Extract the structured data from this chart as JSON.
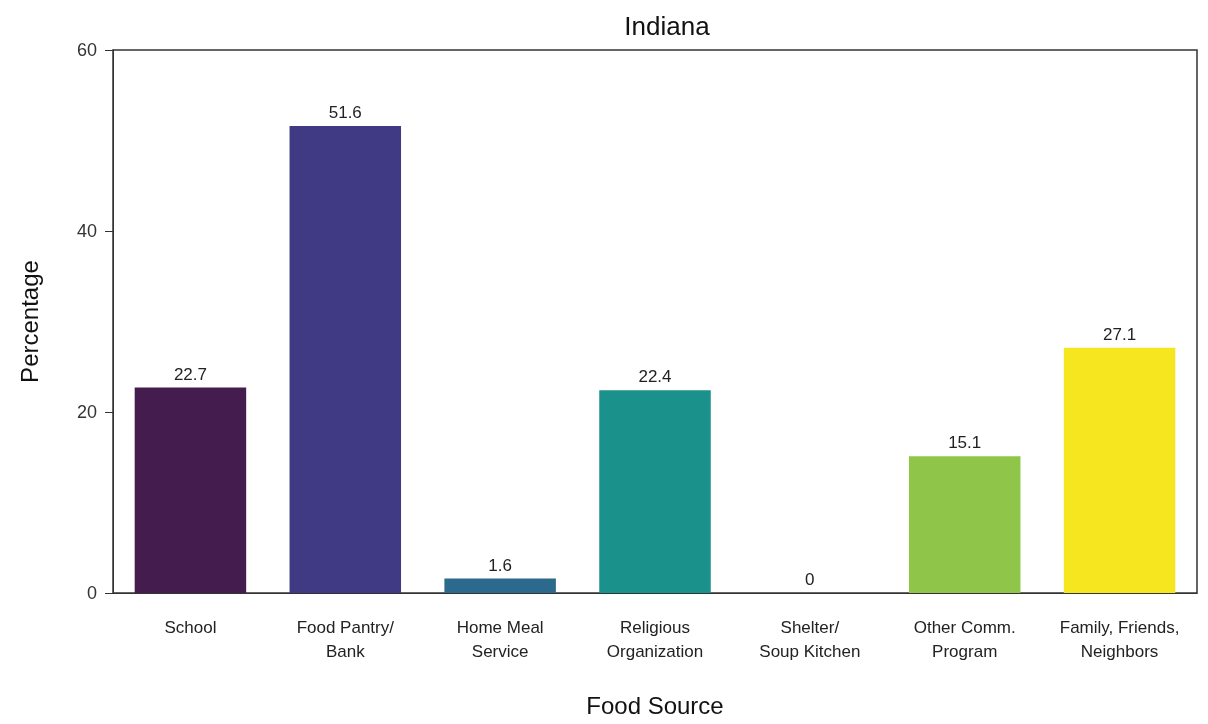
{
  "chart_data": {
    "type": "bar",
    "title": "Indiana",
    "xlabel": "Food Source",
    "ylabel": "Percentage",
    "categories": [
      "School",
      "Food Pantry/\nBank",
      "Home Meal\nService",
      "Religious\nOrganization",
      "Shelter/\nSoup Kitchen",
      "Other Comm.\nProgram",
      "Family, Friends,\nNeighbors"
    ],
    "values": [
      22.7,
      51.6,
      1.6,
      22.4,
      0,
      15.1,
      27.1
    ],
    "colors": [
      "#451c4e",
      "#403a84",
      "#2b6a8d",
      "#1a918b",
      "#3fb877",
      "#8fc64a",
      "#f6e61f"
    ],
    "ylim": [
      0,
      60
    ],
    "yticks": [
      0,
      20,
      40,
      60
    ],
    "grid": false,
    "data_labels": true
  }
}
